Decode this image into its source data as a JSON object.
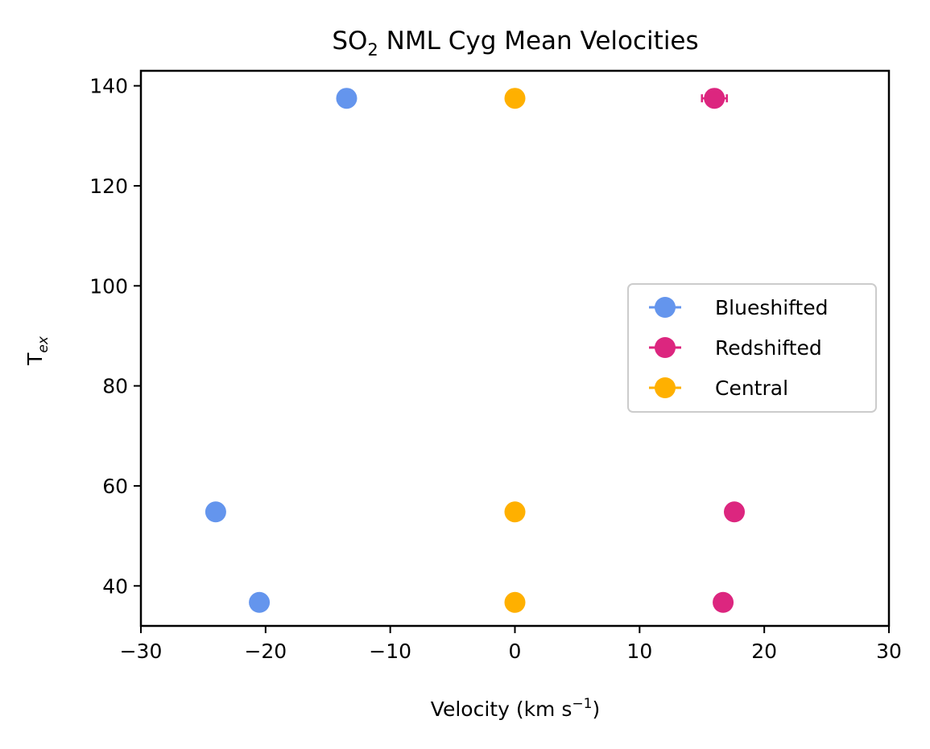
{
  "chart_data": {
    "type": "scatter",
    "title": {
      "base": "SO",
      "sub": "2",
      "rest": " NML Cyg Mean Velocities"
    },
    "xlabel": {
      "base": "Velocity (km s",
      "sup": "−1",
      "rest": ")"
    },
    "ylabel": {
      "base": "T",
      "sub": "ex"
    },
    "xlim": [
      -30,
      30
    ],
    "ylim": [
      32,
      143
    ],
    "x_ticks": [
      -30,
      -20,
      -10,
      0,
      10,
      20,
      30
    ],
    "x_tick_labels": [
      "−30",
      "−20",
      "−10",
      "0",
      "10",
      "20",
      "30"
    ],
    "y_ticks": [
      40,
      60,
      80,
      100,
      120,
      140
    ],
    "y_tick_labels": [
      "40",
      "60",
      "80",
      "100",
      "120",
      "140"
    ],
    "grid": false,
    "legend_position": "center-right",
    "series": [
      {
        "name": "Blueshifted",
        "color": "#6495ed",
        "x": [
          -13.5,
          -24.0,
          -20.5
        ],
        "y": [
          137.5,
          54.8,
          36.7
        ],
        "xerr": [
          0.3,
          0.3,
          0.3
        ]
      },
      {
        "name": "Redshifted",
        "color": "#dc267f",
        "x": [
          16.0,
          17.6,
          16.7
        ],
        "y": [
          137.5,
          54.8,
          36.7
        ],
        "xerr": [
          1.0,
          0.3,
          0.3
        ]
      },
      {
        "name": "Central",
        "color": "#ffb000",
        "x": [
          0.0,
          0.0,
          0.0
        ],
        "y": [
          137.5,
          54.8,
          36.7
        ],
        "xerr": [
          0.3,
          0.3,
          0.3
        ]
      }
    ]
  }
}
